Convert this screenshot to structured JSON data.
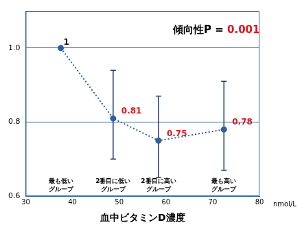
{
  "chart_data": {
    "type": "line",
    "xlabel": "血中ビタミンD濃度",
    "x_unit_label": "nmol/L",
    "annotation": {
      "text": "傾向性P =",
      "value": 0.001
    },
    "x": [
      37.5,
      48.7,
      58.4,
      72.4
    ],
    "categories": [
      [
        "最も低い",
        "グループ"
      ],
      [
        "2番目に低い",
        "グループ"
      ],
      [
        "2番目に高い",
        "グループ"
      ],
      [
        "最も高い",
        "グループ"
      ]
    ],
    "values": [
      1,
      0.81,
      0.75,
      0.78
    ],
    "ci_low": [
      null,
      0.7,
      0.65,
      0.67
    ],
    "ci_high": [
      null,
      0.94,
      0.87,
      0.91
    ],
    "color": "#2e5fa3",
    "marker": "circle",
    "line_style": "dotted",
    "data_labels": true,
    "xlim": [
      30,
      80
    ],
    "xticks": [
      30,
      40,
      50,
      60,
      70,
      80
    ],
    "ylim": [
      0.6,
      1.1
    ],
    "yticks": [
      0.6,
      0.8,
      {
        "value": 1,
        "label": "1.0"
      }
    ],
    "grid": "y"
  }
}
